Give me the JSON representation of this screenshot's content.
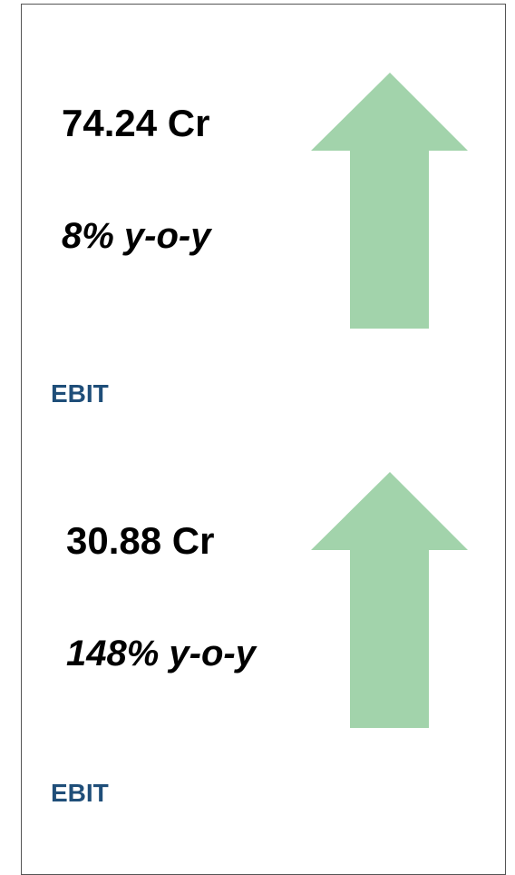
{
  "cards": [
    {
      "value": "74.24 Cr",
      "change": "8% y-o-y",
      "label": "EBIT"
    },
    {
      "value": "30.88 Cr",
      "change": "148% y-o-y",
      "label": "EBIT"
    }
  ]
}
